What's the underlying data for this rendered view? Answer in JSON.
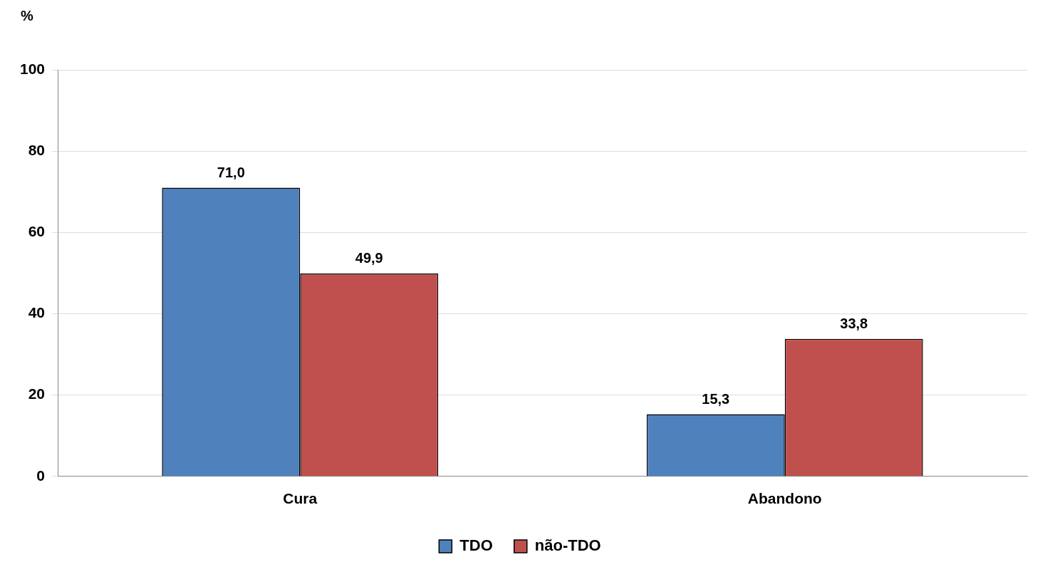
{
  "chart_data": {
    "type": "bar",
    "ylabel": "%",
    "categories": [
      "Cura",
      "Abandono"
    ],
    "series": [
      {
        "name": "TDO",
        "color": "#4f81bd",
        "values": [
          71.0,
          15.3
        ],
        "value_labels": [
          "71,0",
          "15,3"
        ]
      },
      {
        "name": "não-TDO",
        "color": "#c0504d",
        "values": [
          49.9,
          33.8
        ],
        "value_labels": [
          "49,9",
          "33,8"
        ]
      }
    ],
    "ylim": [
      0,
      100
    ],
    "yticks": [
      0,
      20,
      40,
      60,
      80,
      100
    ],
    "grid": "y",
    "legend": "bottom"
  }
}
